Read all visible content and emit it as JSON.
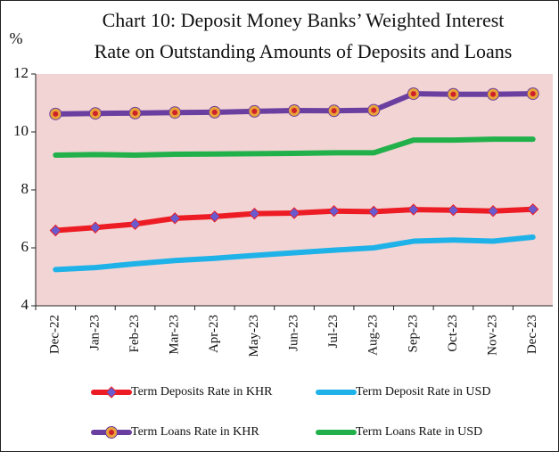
{
  "chart_data": {
    "type": "line",
    "title_lines": [
      "Chart 10: Deposit Money Banks’ Weighted Interest",
      "Rate on Outstanding Amounts of Deposits and Loans"
    ],
    "y_label": "%",
    "categories": [
      "Dec-22",
      "Jan-23",
      "Feb-23",
      "Mar-23",
      "Apr-23",
      "May-23",
      "Jun-23",
      "Jul-23",
      "Aug-23",
      "Sep-23",
      "Oct-23",
      "Nov-23",
      "Dec-23"
    ],
    "series": [
      {
        "name": "Term Deposits Rate in KHR",
        "color": "#ed1c24",
        "marker": "diamond",
        "marker_color": "#6a5acd",
        "values": [
          6.6,
          6.7,
          6.82,
          7.02,
          7.08,
          7.18,
          7.2,
          7.27,
          7.25,
          7.32,
          7.3,
          7.27,
          7.33
        ]
      },
      {
        "name": "Term Deposit Rate in USD",
        "color": "#1fb2e8",
        "values": [
          5.25,
          5.32,
          5.45,
          5.56,
          5.64,
          5.74,
          5.83,
          5.92,
          6.0,
          6.23,
          6.27,
          6.23,
          6.37
        ]
      },
      {
        "name": "Term Loans Rate in KHR",
        "color": "#6b3fa0",
        "marker": "circle",
        "marker_color": "#e8a33a",
        "values": [
          10.62,
          10.64,
          10.65,
          10.67,
          10.68,
          10.71,
          10.74,
          10.73,
          10.75,
          11.32,
          11.3,
          11.3,
          11.32
        ]
      },
      {
        "name": "Term Loans Rate in USD",
        "color": "#22b04b",
        "values": [
          9.2,
          9.22,
          9.2,
          9.23,
          9.24,
          9.25,
          9.26,
          9.28,
          9.28,
          9.72,
          9.72,
          9.75,
          9.75
        ]
      }
    ],
    "ylim": [
      4,
      12
    ],
    "yticks": [
      4,
      6,
      8,
      10,
      12
    ],
    "plot_background": "#f2d4d4"
  }
}
